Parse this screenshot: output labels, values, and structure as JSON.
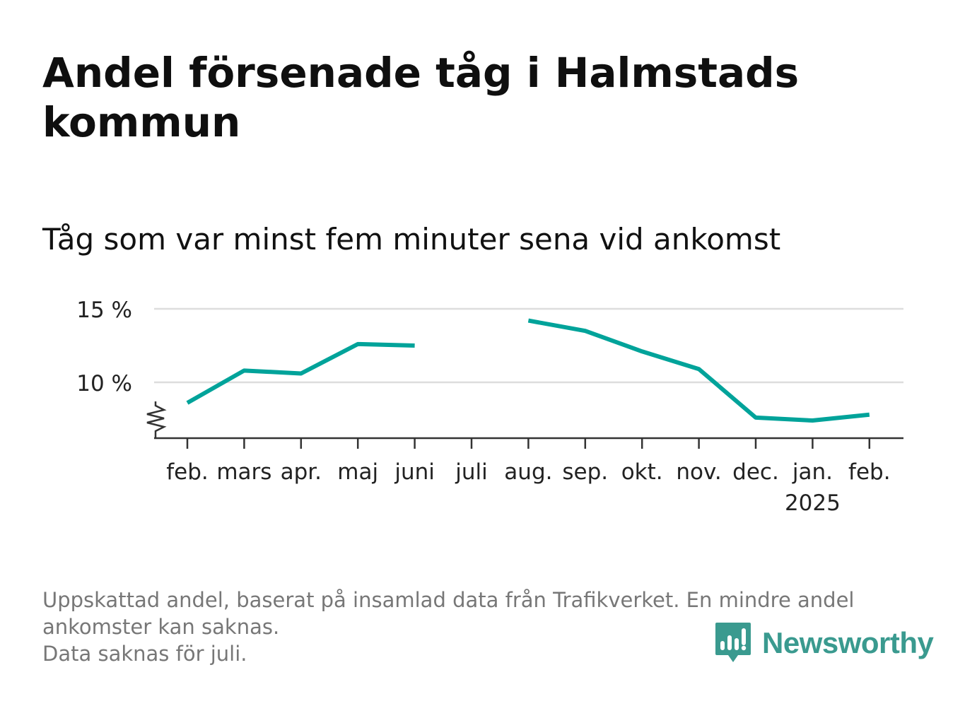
{
  "chart_data": {
    "type": "line",
    "title": "Andel försenade tåg i Halmstads kommun",
    "subtitle": "Tåg som var minst fem minuter sena vid ankomst",
    "categories": [
      "feb.",
      "mars",
      "apr.",
      "maj",
      "juni",
      "juli",
      "aug.",
      "sep.",
      "okt.",
      "nov.",
      "dec.",
      "jan.",
      "feb."
    ],
    "year_label": "2025",
    "year_label_under": "jan.",
    "series": [
      {
        "values": [
          8.6,
          10.8,
          10.6,
          12.6,
          12.5,
          null,
          14.2,
          13.5,
          12.1,
          10.9,
          7.6,
          7.4,
          7.8
        ]
      }
    ],
    "yticks": [
      10,
      15
    ],
    "ytick_labels": [
      "10 %",
      "15 %"
    ],
    "ylim": [
      6.2,
      15
    ],
    "y_axis_break": true,
    "grid": true,
    "line_color": "#00a39a",
    "grid_color": "#dddddd"
  },
  "footnote": {
    "line1": "Uppskattad andel, baserat på insamlad data från Trafikverket. En mindre andel",
    "line2": "ankomster kan saknas.",
    "line3": "Data saknas för juli."
  },
  "logo": {
    "text": "Newsworthy",
    "icon": "bar-chart-speech-bubble-icon",
    "color": "#3a9a8f"
  }
}
